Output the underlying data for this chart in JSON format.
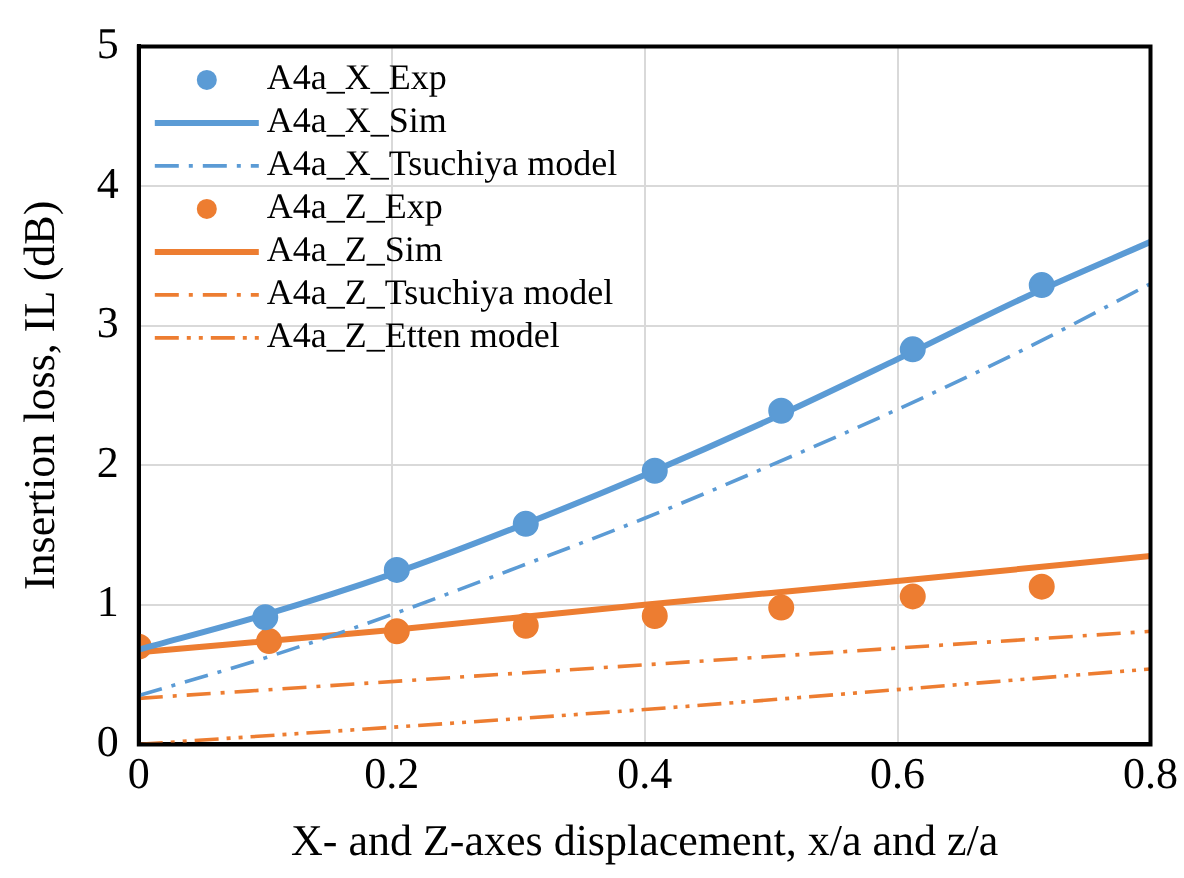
{
  "chart_data": {
    "type": "line",
    "xlabel": "X- and Z-axes displacement, x/a and z/a",
    "ylabel": "Insertion loss, IL (dB)",
    "xlim": [
      0,
      0.8
    ],
    "xticks": [
      0,
      0.2,
      0.4,
      0.6,
      0.8
    ],
    "ylim": [
      0,
      5
    ],
    "yticks": [
      0,
      1,
      2,
      3,
      4,
      5
    ],
    "grid": true,
    "legend": "top left",
    "series": [
      {
        "name": "A4a_X_Exp",
        "type": "scatter",
        "marker": "circle",
        "color": "#5b9bd5",
        "x": [
          0.1,
          0.204,
          0.306,
          0.408,
          0.508,
          0.612,
          0.714
        ],
        "values": [
          0.91,
          1.25,
          1.58,
          1.96,
          2.39,
          2.83,
          3.29
        ]
      },
      {
        "name": "A4a_X_Sim",
        "type": "line",
        "line_style": "solid",
        "color": "#5b9bd5",
        "x": [
          0,
          0.1,
          0.2,
          0.3,
          0.4,
          0.5,
          0.6,
          0.7,
          0.8
        ],
        "values": [
          0.68,
          0.93,
          1.22,
          1.56,
          1.93,
          2.33,
          2.76,
          3.2,
          3.6
        ]
      },
      {
        "name": "A4a_X_Tsuchiya model",
        "type": "line",
        "line_style": "dashdot",
        "color": "#5b9bd5",
        "x": [
          0,
          0.1,
          0.2,
          0.3,
          0.4,
          0.5,
          0.6,
          0.7,
          0.8
        ],
        "values": [
          0.35,
          0.62,
          0.93,
          1.27,
          1.62,
          2.0,
          2.4,
          2.83,
          3.3
        ]
      },
      {
        "name": "A4a_Z_Exp",
        "type": "scatter",
        "marker": "circle",
        "color": "#ed7d31",
        "x": [
          0,
          0.103,
          0.204,
          0.306,
          0.408,
          0.508,
          0.612,
          0.714
        ],
        "values": [
          0.7,
          0.74,
          0.81,
          0.85,
          0.92,
          0.98,
          1.06,
          1.13
        ]
      },
      {
        "name": "A4a_Z_Sim",
        "type": "line",
        "line_style": "solid",
        "color": "#ed7d31",
        "x": [
          0,
          0.2,
          0.4,
          0.6,
          0.8
        ],
        "values": [
          0.66,
          0.82,
          1.0,
          1.17,
          1.35
        ]
      },
      {
        "name": "A4a_Z_Tsuchiya model",
        "type": "line",
        "line_style": "dashdot",
        "color": "#ed7d31",
        "x": [
          0,
          0.4,
          0.8
        ],
        "values": [
          0.33,
          0.57,
          0.81
        ]
      },
      {
        "name": "A4a_Z_Etten model",
        "type": "line",
        "line_style": "dashdotdot",
        "color": "#ed7d31",
        "x": [
          0,
          0.4,
          0.8
        ],
        "values": [
          0,
          0.25,
          0.54
        ]
      }
    ]
  }
}
